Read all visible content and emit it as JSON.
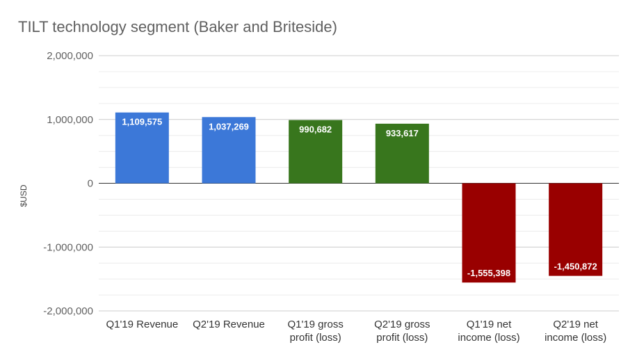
{
  "chart_data": {
    "type": "bar",
    "title": "TILT technology segment (Baker and Briteside)",
    "ylabel": "$USD",
    "xlabel": "",
    "ylim": [
      -2000000,
      2000000
    ],
    "major_ticks": [
      2000000,
      1000000,
      0,
      -1000000,
      -2000000
    ],
    "tick_labels": [
      "2,000,000",
      "1,000,000",
      "0",
      "-1,000,000",
      "-2,000,000"
    ],
    "minor_step": 250000,
    "grid": true,
    "legend": "none",
    "categories": [
      [
        "Q1'19 Revenue"
      ],
      [
        "Q2'19 Revenue"
      ],
      [
        "Q1'19 gross",
        "profit (loss)"
      ],
      [
        "Q2'19 gross",
        "profit (loss)"
      ],
      [
        "Q1'19 net",
        "income (loss)"
      ],
      [
        "Q2'19 net",
        "income (loss)"
      ]
    ],
    "values": [
      1109575,
      1037269,
      990682,
      933617,
      -1555398,
      -1450872
    ],
    "data_labels": [
      "1,109,575",
      "1,037,269",
      "990,682",
      "933,617",
      "-1,555,398",
      "-1,450,872"
    ],
    "colors": [
      "#3c78d8",
      "#3c78d8",
      "#38761d",
      "#38761d",
      "#990000",
      "#990000"
    ]
  }
}
